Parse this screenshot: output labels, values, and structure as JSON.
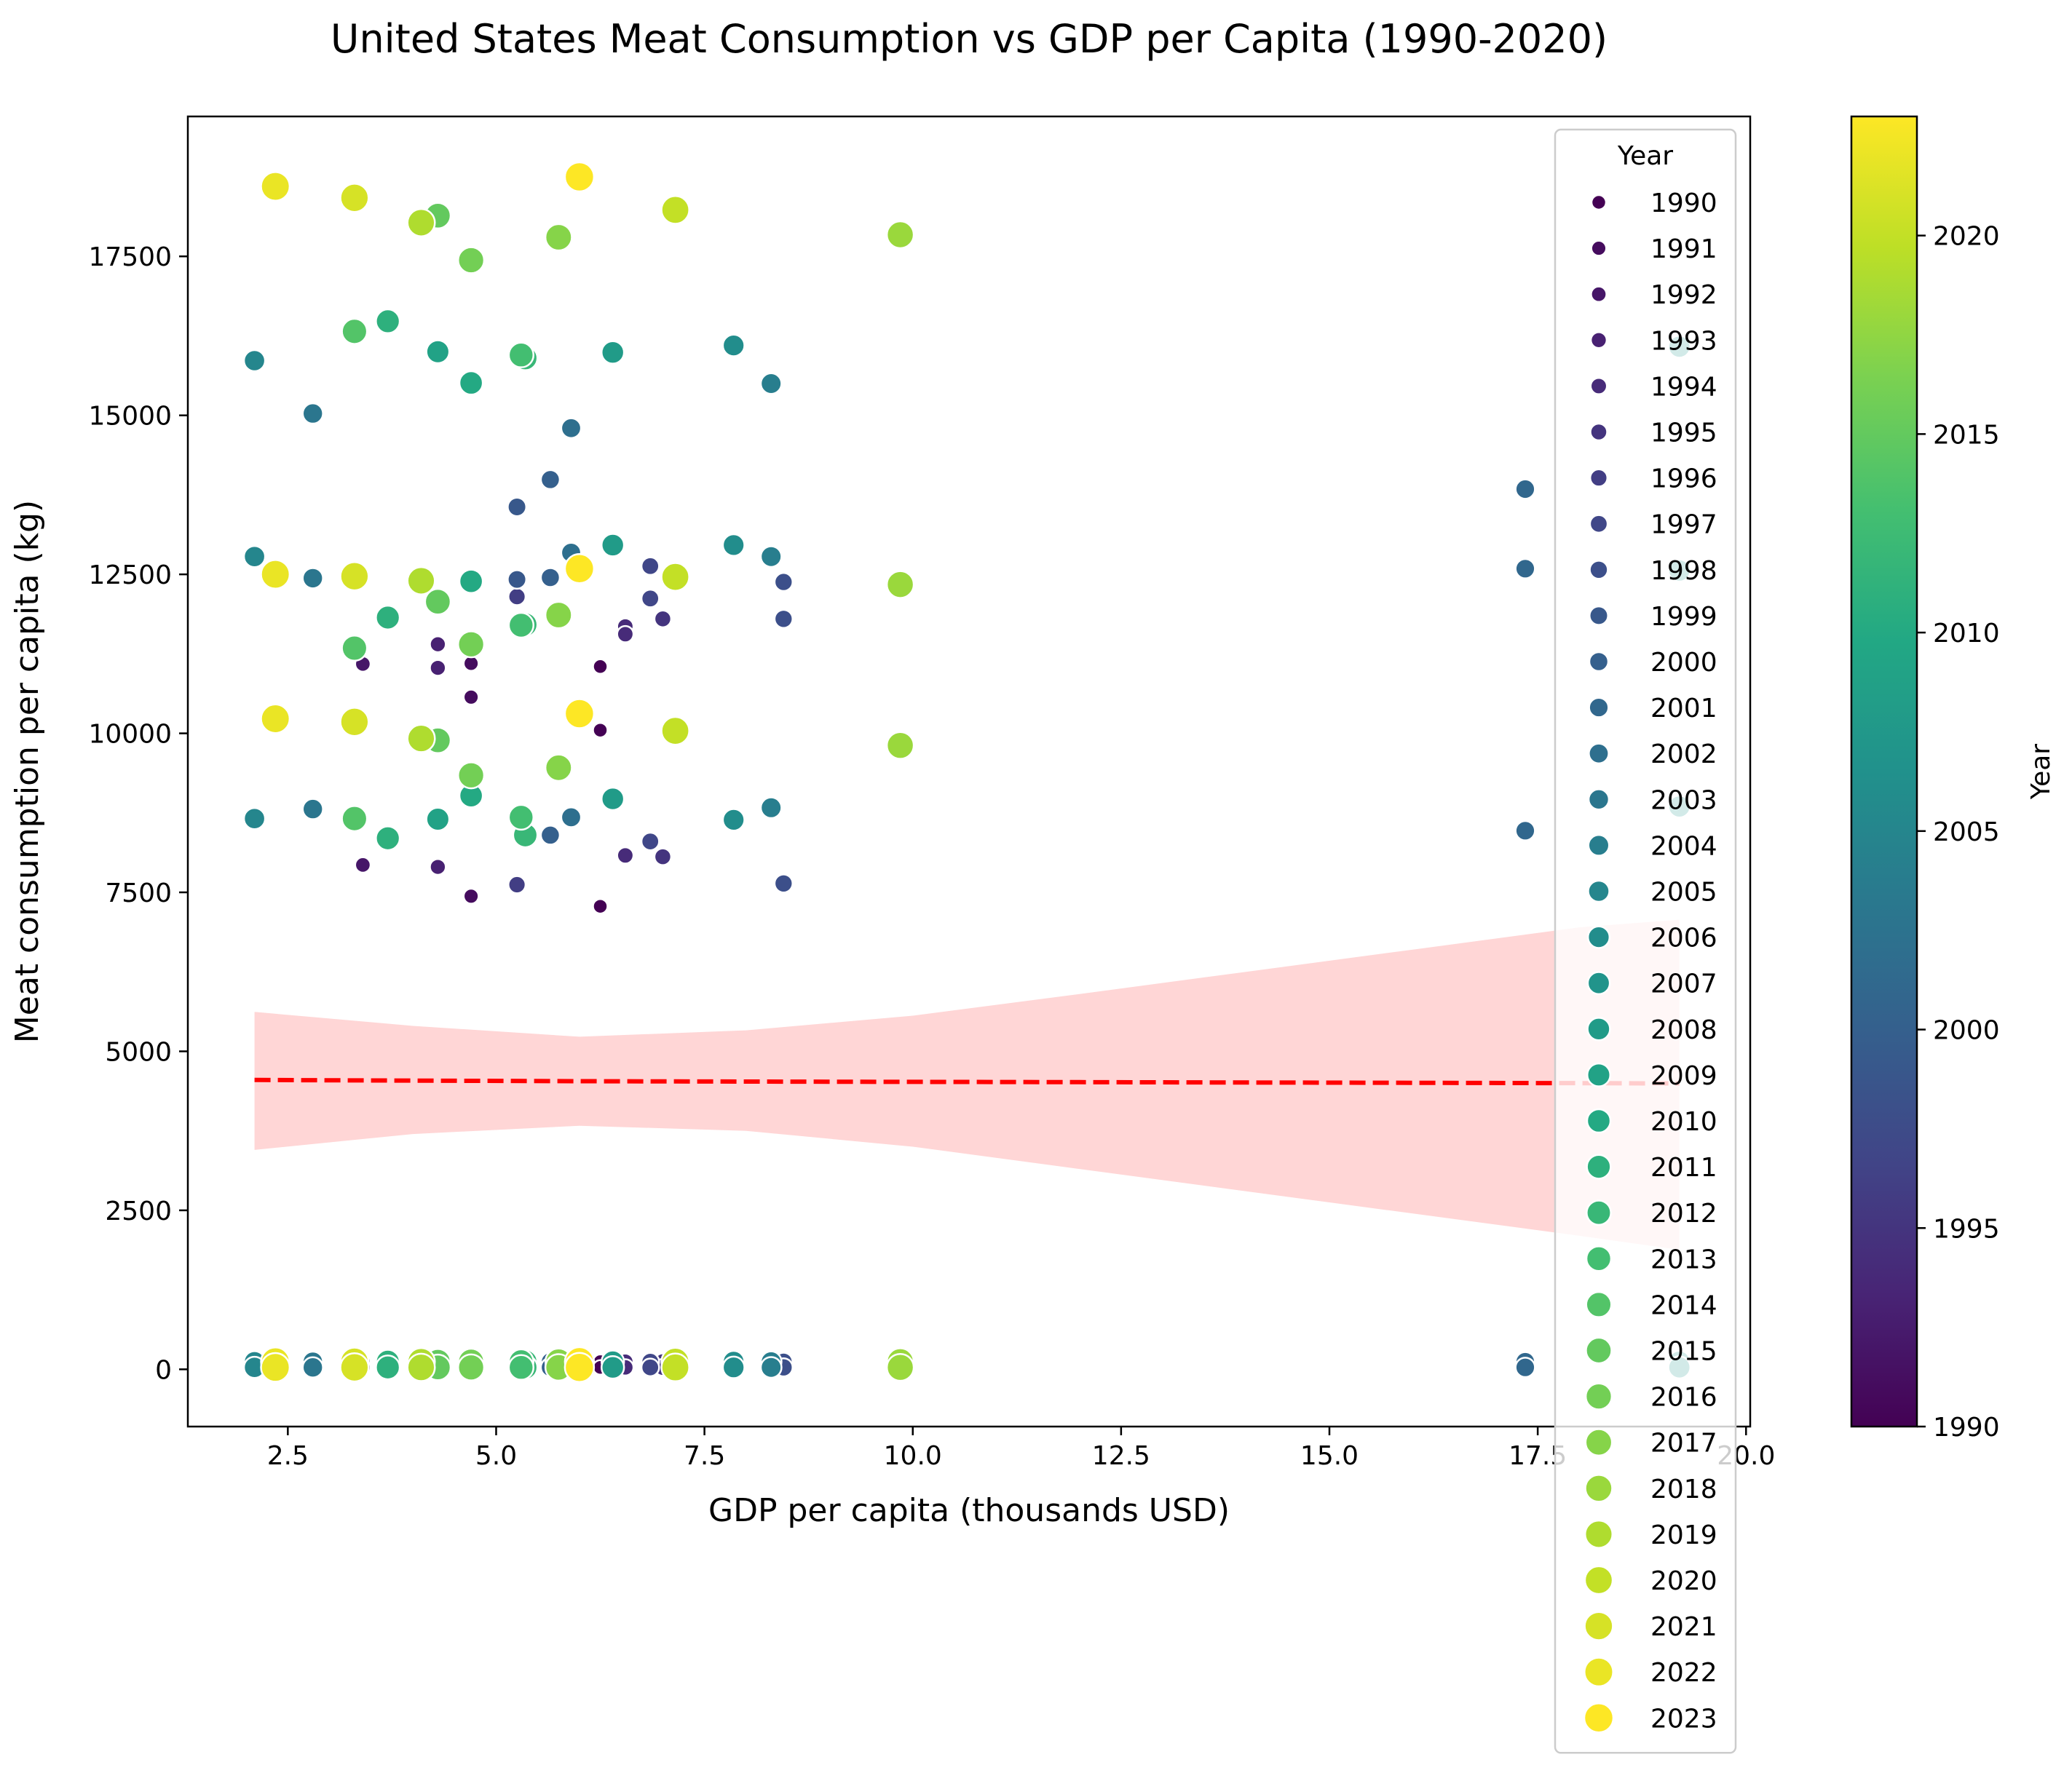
{
  "chart_data": {
    "type": "scatter",
    "title": "United States Meat Consumption vs GDP per Capita (1990-2020)",
    "xlabel": "GDP per capita (thousands USD)",
    "ylabel": "Meat consumption per capita (kg)",
    "xlim": [
      1.3,
      20.05
    ],
    "ylim": [
      -900,
      19700
    ],
    "xticks": [
      2.5,
      5.0,
      7.5,
      10.0,
      12.5,
      15.0,
      17.5,
      20.0
    ],
    "xtick_labels": [
      "2.5",
      "5.0",
      "7.5",
      "10.0",
      "12.5",
      "15.0",
      "17.5",
      "20.0"
    ],
    "yticks": [
      0,
      2500,
      5000,
      7500,
      10000,
      12500,
      15000,
      17500
    ],
    "ytick_labels": [
      "0",
      "2500",
      "5000",
      "7500",
      "10000",
      "12500",
      "15000",
      "17500"
    ],
    "grid": false,
    "colormap": "viridis",
    "year_min": 1990,
    "year_max": 2023,
    "colorbar": {
      "label": "Year",
      "ticks": [
        1990,
        1995,
        2000,
        2005,
        2010,
        2015,
        2020
      ],
      "tick_labels": [
        "1990",
        "1995",
        "2000",
        "2005",
        "2010",
        "2015",
        "2020"
      ]
    },
    "legend": {
      "title": "Year",
      "position": "top-right",
      "entries": [
        "1990",
        "1991",
        "1992",
        "1993",
        "1994",
        "1995",
        "1996",
        "1997",
        "1998",
        "1999",
        "2000",
        "2001",
        "2002",
        "2003",
        "2004",
        "2005",
        "2006",
        "2007",
        "2008",
        "2009",
        "2010",
        "2011",
        "2012",
        "2013",
        "2014",
        "2015",
        "2016",
        "2017",
        "2018",
        "2019",
        "2020",
        "2021",
        "2022",
        "2023"
      ]
    },
    "regression": {
      "color": "#ff0000",
      "band_color": "#ffd6d6",
      "x": [
        2.1,
        4.0,
        6.0,
        8.0,
        10.0,
        12.0,
        14.0,
        16.0,
        18.0,
        19.2
      ],
      "y": [
        4550,
        4540,
        4530,
        4525,
        4520,
        4515,
        4510,
        4505,
        4500,
        4495
      ],
      "ci_low": [
        3450,
        3700,
        3830,
        3750,
        3500,
        3150,
        2800,
        2450,
        2100,
        1880
      ],
      "ci_high": [
        5620,
        5400,
        5230,
        5330,
        5560,
        5900,
        6250,
        6600,
        6950,
        7070
      ]
    },
    "series": [
      {
        "year": 1990,
        "points": [
          [
            6.25,
            11050
          ],
          [
            6.25,
            10050
          ],
          [
            6.25,
            7280
          ],
          [
            6.25,
            120
          ],
          [
            6.25,
            30
          ]
        ]
      },
      {
        "year": 1991,
        "points": [
          [
            4.7,
            11100
          ],
          [
            4.7,
            10570
          ],
          [
            4.7,
            7440
          ],
          [
            4.7,
            120
          ],
          [
            4.7,
            30
          ]
        ]
      },
      {
        "year": 1992,
        "points": [
          [
            3.4,
            11090
          ],
          [
            3.4,
            7930
          ],
          [
            3.4,
            120
          ],
          [
            3.4,
            30
          ]
        ]
      },
      {
        "year": 1993,
        "points": [
          [
            4.3,
            11400
          ],
          [
            4.3,
            11030
          ],
          [
            4.3,
            7900
          ],
          [
            4.3,
            120
          ],
          [
            4.3,
            30
          ]
        ]
      },
      {
        "year": 1994,
        "points": [
          [
            6.55,
            11680
          ],
          [
            6.55,
            11560
          ],
          [
            6.55,
            8080
          ],
          [
            6.55,
            120
          ],
          [
            6.55,
            30
          ]
        ]
      },
      {
        "year": 1995,
        "points": [
          [
            7.0,
            11800
          ],
          [
            7.0,
            8060
          ],
          [
            7.0,
            120
          ],
          [
            7.0,
            30
          ]
        ]
      },
      {
        "year": 1996,
        "points": [
          [
            5.25,
            12150
          ],
          [
            5.25,
            7620
          ],
          [
            5.25,
            120
          ],
          [
            5.25,
            30
          ]
        ]
      },
      {
        "year": 1997,
        "points": [
          [
            6.85,
            12630
          ],
          [
            6.85,
            12120
          ],
          [
            6.85,
            8300
          ],
          [
            6.85,
            120
          ],
          [
            6.85,
            30
          ]
        ]
      },
      {
        "year": 1998,
        "points": [
          [
            8.45,
            12380
          ],
          [
            8.45,
            11800
          ],
          [
            8.45,
            7640
          ],
          [
            8.45,
            120
          ],
          [
            8.45,
            30
          ]
        ]
      },
      {
        "year": 1999,
        "points": [
          [
            5.25,
            13560
          ],
          [
            5.25,
            12420
          ],
          [
            5.25,
            120
          ],
          [
            5.25,
            30
          ]
        ]
      },
      {
        "year": 2000,
        "points": [
          [
            5.65,
            13990
          ],
          [
            5.65,
            12450
          ],
          [
            5.65,
            8400
          ],
          [
            5.65,
            120
          ],
          [
            5.65,
            30
          ]
        ]
      },
      {
        "year": 2001,
        "points": [
          [
            17.35,
            13840
          ],
          [
            17.35,
            12590
          ],
          [
            17.35,
            8470
          ],
          [
            17.35,
            120
          ],
          [
            17.35,
            30
          ]
        ]
      },
      {
        "year": 2002,
        "points": [
          [
            5.9,
            14800
          ],
          [
            5.9,
            12840
          ],
          [
            5.9,
            8680
          ],
          [
            5.9,
            120
          ],
          [
            5.9,
            30
          ]
        ]
      },
      {
        "year": 2003,
        "points": [
          [
            2.8,
            15030
          ],
          [
            2.8,
            12440
          ],
          [
            2.8,
            8810
          ],
          [
            2.8,
            120
          ],
          [
            2.8,
            30
          ]
        ]
      },
      {
        "year": 2004,
        "points": [
          [
            8.3,
            15500
          ],
          [
            8.3,
            12780
          ],
          [
            8.3,
            8830
          ],
          [
            8.3,
            120
          ],
          [
            8.3,
            30
          ]
        ]
      },
      {
        "year": 2005,
        "points": [
          [
            2.1,
            15860
          ],
          [
            2.1,
            12780
          ],
          [
            2.1,
            8660
          ],
          [
            2.1,
            120
          ],
          [
            2.1,
            30
          ]
        ]
      },
      {
        "year": 2006,
        "points": [
          [
            7.85,
            16100
          ],
          [
            7.85,
            12960
          ],
          [
            7.85,
            8640
          ],
          [
            7.85,
            120
          ],
          [
            7.85,
            30
          ]
        ]
      },
      {
        "year": 2007,
        "points": [
          [
            19.2,
            16080
          ],
          [
            19.2,
            12560
          ],
          [
            19.2,
            8850
          ],
          [
            19.2,
            120
          ],
          [
            19.2,
            30
          ]
        ]
      },
      {
        "year": 2008,
        "points": [
          [
            6.4,
            15990
          ],
          [
            6.4,
            12960
          ],
          [
            6.4,
            8970
          ],
          [
            6.4,
            120
          ],
          [
            6.4,
            30
          ]
        ]
      },
      {
        "year": 2009,
        "points": [
          [
            4.3,
            16000
          ],
          [
            4.3,
            8650
          ],
          [
            4.3,
            120
          ],
          [
            4.3,
            30
          ]
        ]
      },
      {
        "year": 2010,
        "points": [
          [
            4.7,
            15510
          ],
          [
            4.7,
            12390
          ],
          [
            4.7,
            9020
          ],
          [
            4.7,
            120
          ],
          [
            4.7,
            30
          ]
        ]
      },
      {
        "year": 2011,
        "points": [
          [
            3.7,
            16480
          ],
          [
            3.7,
            11820
          ],
          [
            3.7,
            8350
          ],
          [
            3.7,
            120
          ],
          [
            3.7,
            30
          ]
        ]
      },
      {
        "year": 2012,
        "points": [
          [
            5.35,
            15900
          ],
          [
            5.35,
            11710
          ],
          [
            5.35,
            8400
          ],
          [
            5.35,
            120
          ],
          [
            5.35,
            30
          ]
        ]
      },
      {
        "year": 2013,
        "points": [
          [
            5.3,
            15950
          ],
          [
            5.3,
            11700
          ],
          [
            5.3,
            8680
          ],
          [
            5.3,
            120
          ],
          [
            5.3,
            30
          ]
        ]
      },
      {
        "year": 2014,
        "points": [
          [
            3.3,
            16320
          ],
          [
            3.3,
            11340
          ],
          [
            3.3,
            8660
          ],
          [
            3.3,
            120
          ],
          [
            3.3,
            30
          ]
        ]
      },
      {
        "year": 2015,
        "points": [
          [
            4.3,
            18140
          ],
          [
            4.3,
            12070
          ],
          [
            4.3,
            9890
          ],
          [
            4.3,
            120
          ],
          [
            4.3,
            30
          ]
        ]
      },
      {
        "year": 2016,
        "points": [
          [
            4.7,
            17440
          ],
          [
            4.7,
            11400
          ],
          [
            4.7,
            9340
          ],
          [
            4.7,
            120
          ],
          [
            4.7,
            30
          ]
        ]
      },
      {
        "year": 2017,
        "points": [
          [
            5.75,
            17800
          ],
          [
            5.75,
            11860
          ],
          [
            5.75,
            9460
          ],
          [
            5.75,
            120
          ],
          [
            5.75,
            30
          ]
        ]
      },
      {
        "year": 2018,
        "points": [
          [
            9.85,
            17840
          ],
          [
            9.85,
            12340
          ],
          [
            9.85,
            9810
          ],
          [
            9.85,
            120
          ],
          [
            9.85,
            30
          ]
        ]
      },
      {
        "year": 2019,
        "points": [
          [
            4.1,
            18030
          ],
          [
            4.1,
            12400
          ],
          [
            4.1,
            9920
          ],
          [
            4.1,
            120
          ],
          [
            4.1,
            30
          ]
        ]
      },
      {
        "year": 2020,
        "points": [
          [
            7.15,
            18230
          ],
          [
            7.15,
            12460
          ],
          [
            7.15,
            10040
          ],
          [
            7.15,
            120
          ],
          [
            7.15,
            30
          ]
        ]
      },
      {
        "year": 2021,
        "points": [
          [
            3.3,
            18420
          ],
          [
            3.3,
            12470
          ],
          [
            3.3,
            10180
          ],
          [
            3.3,
            120
          ],
          [
            3.3,
            30
          ]
        ]
      },
      {
        "year": 2022,
        "points": [
          [
            2.35,
            18600
          ],
          [
            2.35,
            12500
          ],
          [
            2.35,
            10230
          ],
          [
            2.35,
            120
          ],
          [
            2.35,
            30
          ]
        ]
      },
      {
        "year": 2023,
        "points": [
          [
            6.0,
            18750
          ],
          [
            6.0,
            12590
          ],
          [
            6.0,
            10310
          ],
          [
            6.0,
            120
          ],
          [
            6.0,
            30
          ]
        ]
      }
    ]
  }
}
